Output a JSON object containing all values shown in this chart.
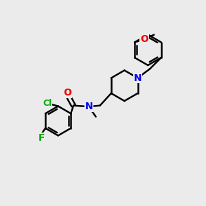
{
  "bg_color": "#ebebeb",
  "bond_color": "#000000",
  "bond_width": 1.8,
  "atom_colors": {
    "N": "#0000ee",
    "O": "#ee0000",
    "Cl": "#00aa00",
    "F": "#00aa00"
  },
  "font_size": 10,
  "figsize": [
    3.0,
    3.0
  ],
  "dpi": 100
}
